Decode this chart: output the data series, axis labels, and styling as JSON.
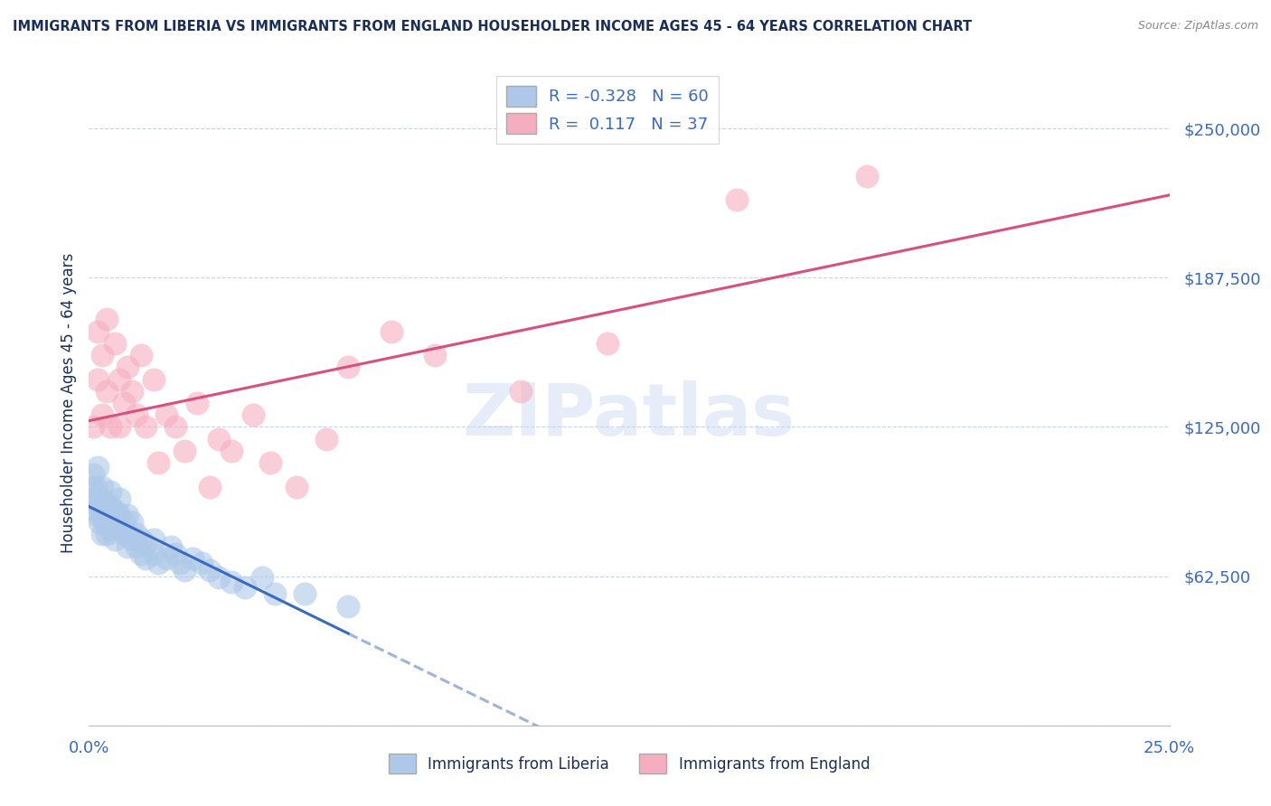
{
  "title": "IMMIGRANTS FROM LIBERIA VS IMMIGRANTS FROM ENGLAND HOUSEHOLDER INCOME AGES 45 - 64 YEARS CORRELATION CHART",
  "source": "Source: ZipAtlas.com",
  "ylabel": "Householder Income Ages 45 - 64 years",
  "xlim": [
    0.0,
    0.25
  ],
  "ylim": [
    0,
    270000
  ],
  "yticks": [
    0,
    62500,
    125000,
    187500,
    250000
  ],
  "ytick_labels": [
    "",
    "$62,500",
    "$125,000",
    "$187,500",
    "$250,000"
  ],
  "xticks": [
    0.0,
    0.25
  ],
  "xtick_labels": [
    "0.0%",
    "25.0%"
  ],
  "liberia_R": -0.328,
  "liberia_N": 60,
  "england_R": 0.117,
  "england_N": 37,
  "liberia_color": "#adc8e8",
  "england_color": "#f5aec0",
  "liberia_line_color": "#3a6abf",
  "england_line_color": "#d94f7e",
  "watermark": "ZIPatlas",
  "background_color": "#ffffff",
  "grid_color": "#c8d4e8",
  "title_color": "#1a2e5a",
  "axis_label_color": "#1a2e5a",
  "tick_label_color": "#3a6abf",
  "liberia_x": [
    0.0005,
    0.001,
    0.001,
    0.0015,
    0.0015,
    0.002,
    0.002,
    0.002,
    0.0025,
    0.0025,
    0.003,
    0.003,
    0.003,
    0.003,
    0.0035,
    0.0035,
    0.004,
    0.004,
    0.004,
    0.005,
    0.005,
    0.005,
    0.005,
    0.006,
    0.006,
    0.006,
    0.007,
    0.007,
    0.007,
    0.008,
    0.008,
    0.009,
    0.009,
    0.009,
    0.01,
    0.01,
    0.011,
    0.011,
    0.012,
    0.012,
    0.013,
    0.013,
    0.015,
    0.015,
    0.016,
    0.018,
    0.019,
    0.02,
    0.021,
    0.022,
    0.024,
    0.026,
    0.028,
    0.03,
    0.033,
    0.036,
    0.04,
    0.043,
    0.05,
    0.06
  ],
  "liberia_y": [
    100000,
    95000,
    105000,
    90000,
    100000,
    88000,
    95000,
    108000,
    85000,
    92000,
    80000,
    88000,
    95000,
    100000,
    85000,
    90000,
    80000,
    85000,
    92000,
    82000,
    88000,
    92000,
    98000,
    78000,
    85000,
    90000,
    82000,
    88000,
    95000,
    80000,
    86000,
    75000,
    80000,
    88000,
    78000,
    85000,
    75000,
    80000,
    72000,
    78000,
    70000,
    76000,
    72000,
    78000,
    68000,
    70000,
    75000,
    72000,
    68000,
    65000,
    70000,
    68000,
    65000,
    62000,
    60000,
    58000,
    62000,
    55000,
    55000,
    50000
  ],
  "england_x": [
    0.001,
    0.002,
    0.002,
    0.003,
    0.003,
    0.004,
    0.004,
    0.005,
    0.006,
    0.007,
    0.007,
    0.008,
    0.009,
    0.01,
    0.011,
    0.012,
    0.013,
    0.015,
    0.016,
    0.018,
    0.02,
    0.022,
    0.025,
    0.028,
    0.03,
    0.033,
    0.038,
    0.042,
    0.048,
    0.055,
    0.06,
    0.07,
    0.08,
    0.1,
    0.12,
    0.15,
    0.18
  ],
  "england_y": [
    125000,
    145000,
    165000,
    130000,
    155000,
    140000,
    170000,
    125000,
    160000,
    145000,
    125000,
    135000,
    150000,
    140000,
    130000,
    155000,
    125000,
    145000,
    110000,
    130000,
    125000,
    115000,
    135000,
    100000,
    120000,
    115000,
    130000,
    110000,
    100000,
    120000,
    150000,
    165000,
    155000,
    140000,
    160000,
    220000,
    230000
  ]
}
